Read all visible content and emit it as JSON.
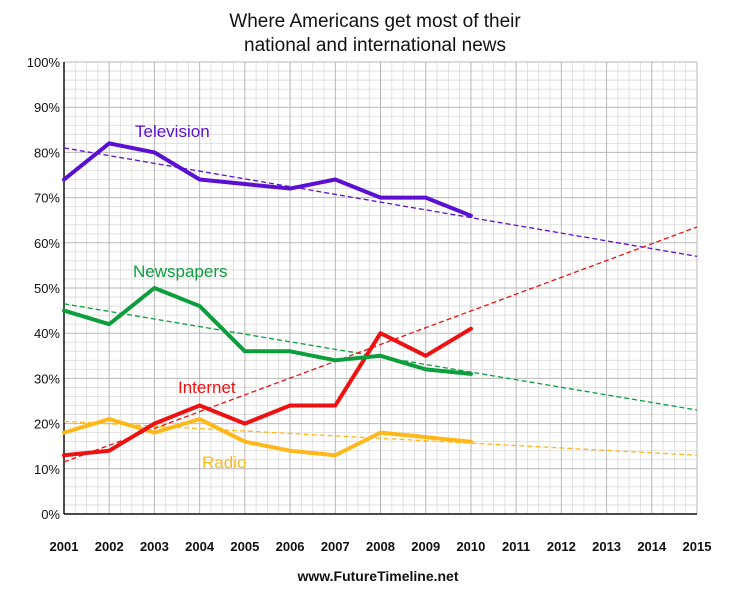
{
  "chart_data": {
    "type": "line",
    "title_lines": [
      "Where Americans get most of their",
      "national and international news"
    ],
    "x": [
      2001,
      2002,
      2003,
      2004,
      2005,
      2006,
      2007,
      2008,
      2009,
      2010
    ],
    "xticks": [
      "2001",
      "2002",
      "2003",
      "2004",
      "2005",
      "2006",
      "2007",
      "2008",
      "2009",
      "2010",
      "2011",
      "2012",
      "2013",
      "2014",
      "2015"
    ],
    "xlim": [
      2001,
      2015
    ],
    "ylim": [
      0,
      100
    ],
    "yticks": [
      "0%",
      "10%",
      "20%",
      "30%",
      "40%",
      "50%",
      "60%",
      "70%",
      "80%",
      "90%",
      "100%"
    ],
    "grid": true,
    "series": [
      {
        "name": "Television",
        "color": "#5b0fd1",
        "values": [
          74,
          82,
          80,
          74,
          73,
          72,
          74,
          70,
          70,
          66
        ],
        "trend": {
          "start": [
            2001,
            81
          ],
          "end": [
            2015,
            57
          ]
        }
      },
      {
        "name": "Newspapers",
        "color": "#0c9e3d",
        "values": [
          45,
          42,
          50,
          46,
          36,
          36,
          34,
          35,
          32,
          31
        ],
        "trend": {
          "start": [
            2001,
            46.5
          ],
          "end": [
            2015,
            23
          ]
        }
      },
      {
        "name": "Internet",
        "color": "#ee1111",
        "values": [
          13,
          14,
          20,
          24,
          20,
          24,
          24,
          40,
          35,
          41
        ],
        "trend": {
          "start": [
            2001,
            11.5
          ],
          "end": [
            2015,
            63.5
          ]
        }
      },
      {
        "name": "Radio",
        "color": "#ffb81a",
        "values": [
          18,
          21,
          18,
          21,
          16,
          14,
          13,
          18,
          17,
          16
        ],
        "trend": {
          "start": [
            2001,
            20.5
          ],
          "end": [
            2015,
            13
          ]
        }
      }
    ],
    "footer": "www.FutureTimeline.net"
  }
}
